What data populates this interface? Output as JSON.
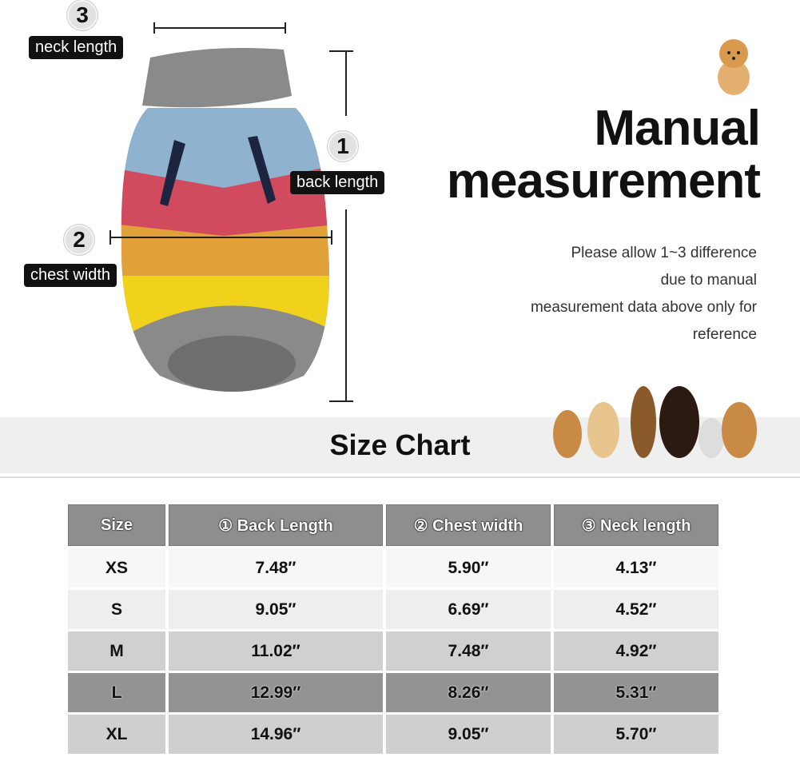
{
  "labels": {
    "neck": {
      "num": "3",
      "text": "neck length"
    },
    "back": {
      "num": "1",
      "text": "back length"
    },
    "chest": {
      "num": "2",
      "text": "chest width"
    }
  },
  "title": {
    "line1": "Manual",
    "line2": "measurement"
  },
  "note": [
    "Please allow 1~3 difference",
    "due to manual",
    "measurement data above only for",
    "reference"
  ],
  "size_chart_title": "Size Chart",
  "table": {
    "headers": [
      "Size",
      "① Back Length",
      "② Chest width",
      "③ Neck length"
    ],
    "rows": [
      [
        "XS",
        "7.48″",
        "5.90″",
        "4.13″"
      ],
      [
        "S",
        "9.05″",
        "6.69″",
        "4.52″"
      ],
      [
        "M",
        "11.02″",
        "7.48″",
        "4.92″"
      ],
      [
        "L",
        "12.99″",
        "8.26″",
        "5.31″"
      ],
      [
        "XL",
        "14.96″",
        "9.05″",
        "5.70″"
      ]
    ]
  },
  "colors": {
    "header": "#8e8e8e",
    "sweater_gray": "#8a8a8a",
    "blue": "#8fb3cf",
    "red": "#d24a5e",
    "orange": "#e0a13a",
    "yellow": "#f0d11c"
  }
}
